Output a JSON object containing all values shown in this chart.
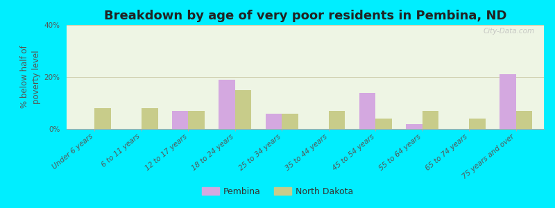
{
  "title": "Breakdown by age of very poor residents in Pembina, ND",
  "ylabel": "% below half of\npoverty level",
  "categories": [
    "Under 6 years",
    "6 to 11 years",
    "12 to 17 years",
    "18 to 24 years",
    "25 to 34 years",
    "35 to 44 years",
    "45 to 54 years",
    "55 to 64 years",
    "65 to 74 years",
    "75 years and over"
  ],
  "pembina_values": [
    0,
    0,
    7,
    19,
    6,
    0,
    14,
    2,
    0,
    21
  ],
  "nd_values": [
    8,
    8,
    7,
    15,
    6,
    7,
    4,
    7,
    4,
    7
  ],
  "pembina_color": "#d4a8e0",
  "nd_color": "#c8cc8a",
  "background_outer": "#00eeff",
  "background_plot": "#eef5e4",
  "title_fontsize": 13,
  "ylabel_fontsize": 8.5,
  "tick_fontsize": 7.5,
  "legend_fontsize": 9,
  "ylim": [
    0,
    40
  ],
  "yticks": [
    0,
    20,
    40
  ],
  "ytick_labels": [
    "0%",
    "20%",
    "40%"
  ],
  "bar_width": 0.35,
  "watermark": "City-Data.com"
}
